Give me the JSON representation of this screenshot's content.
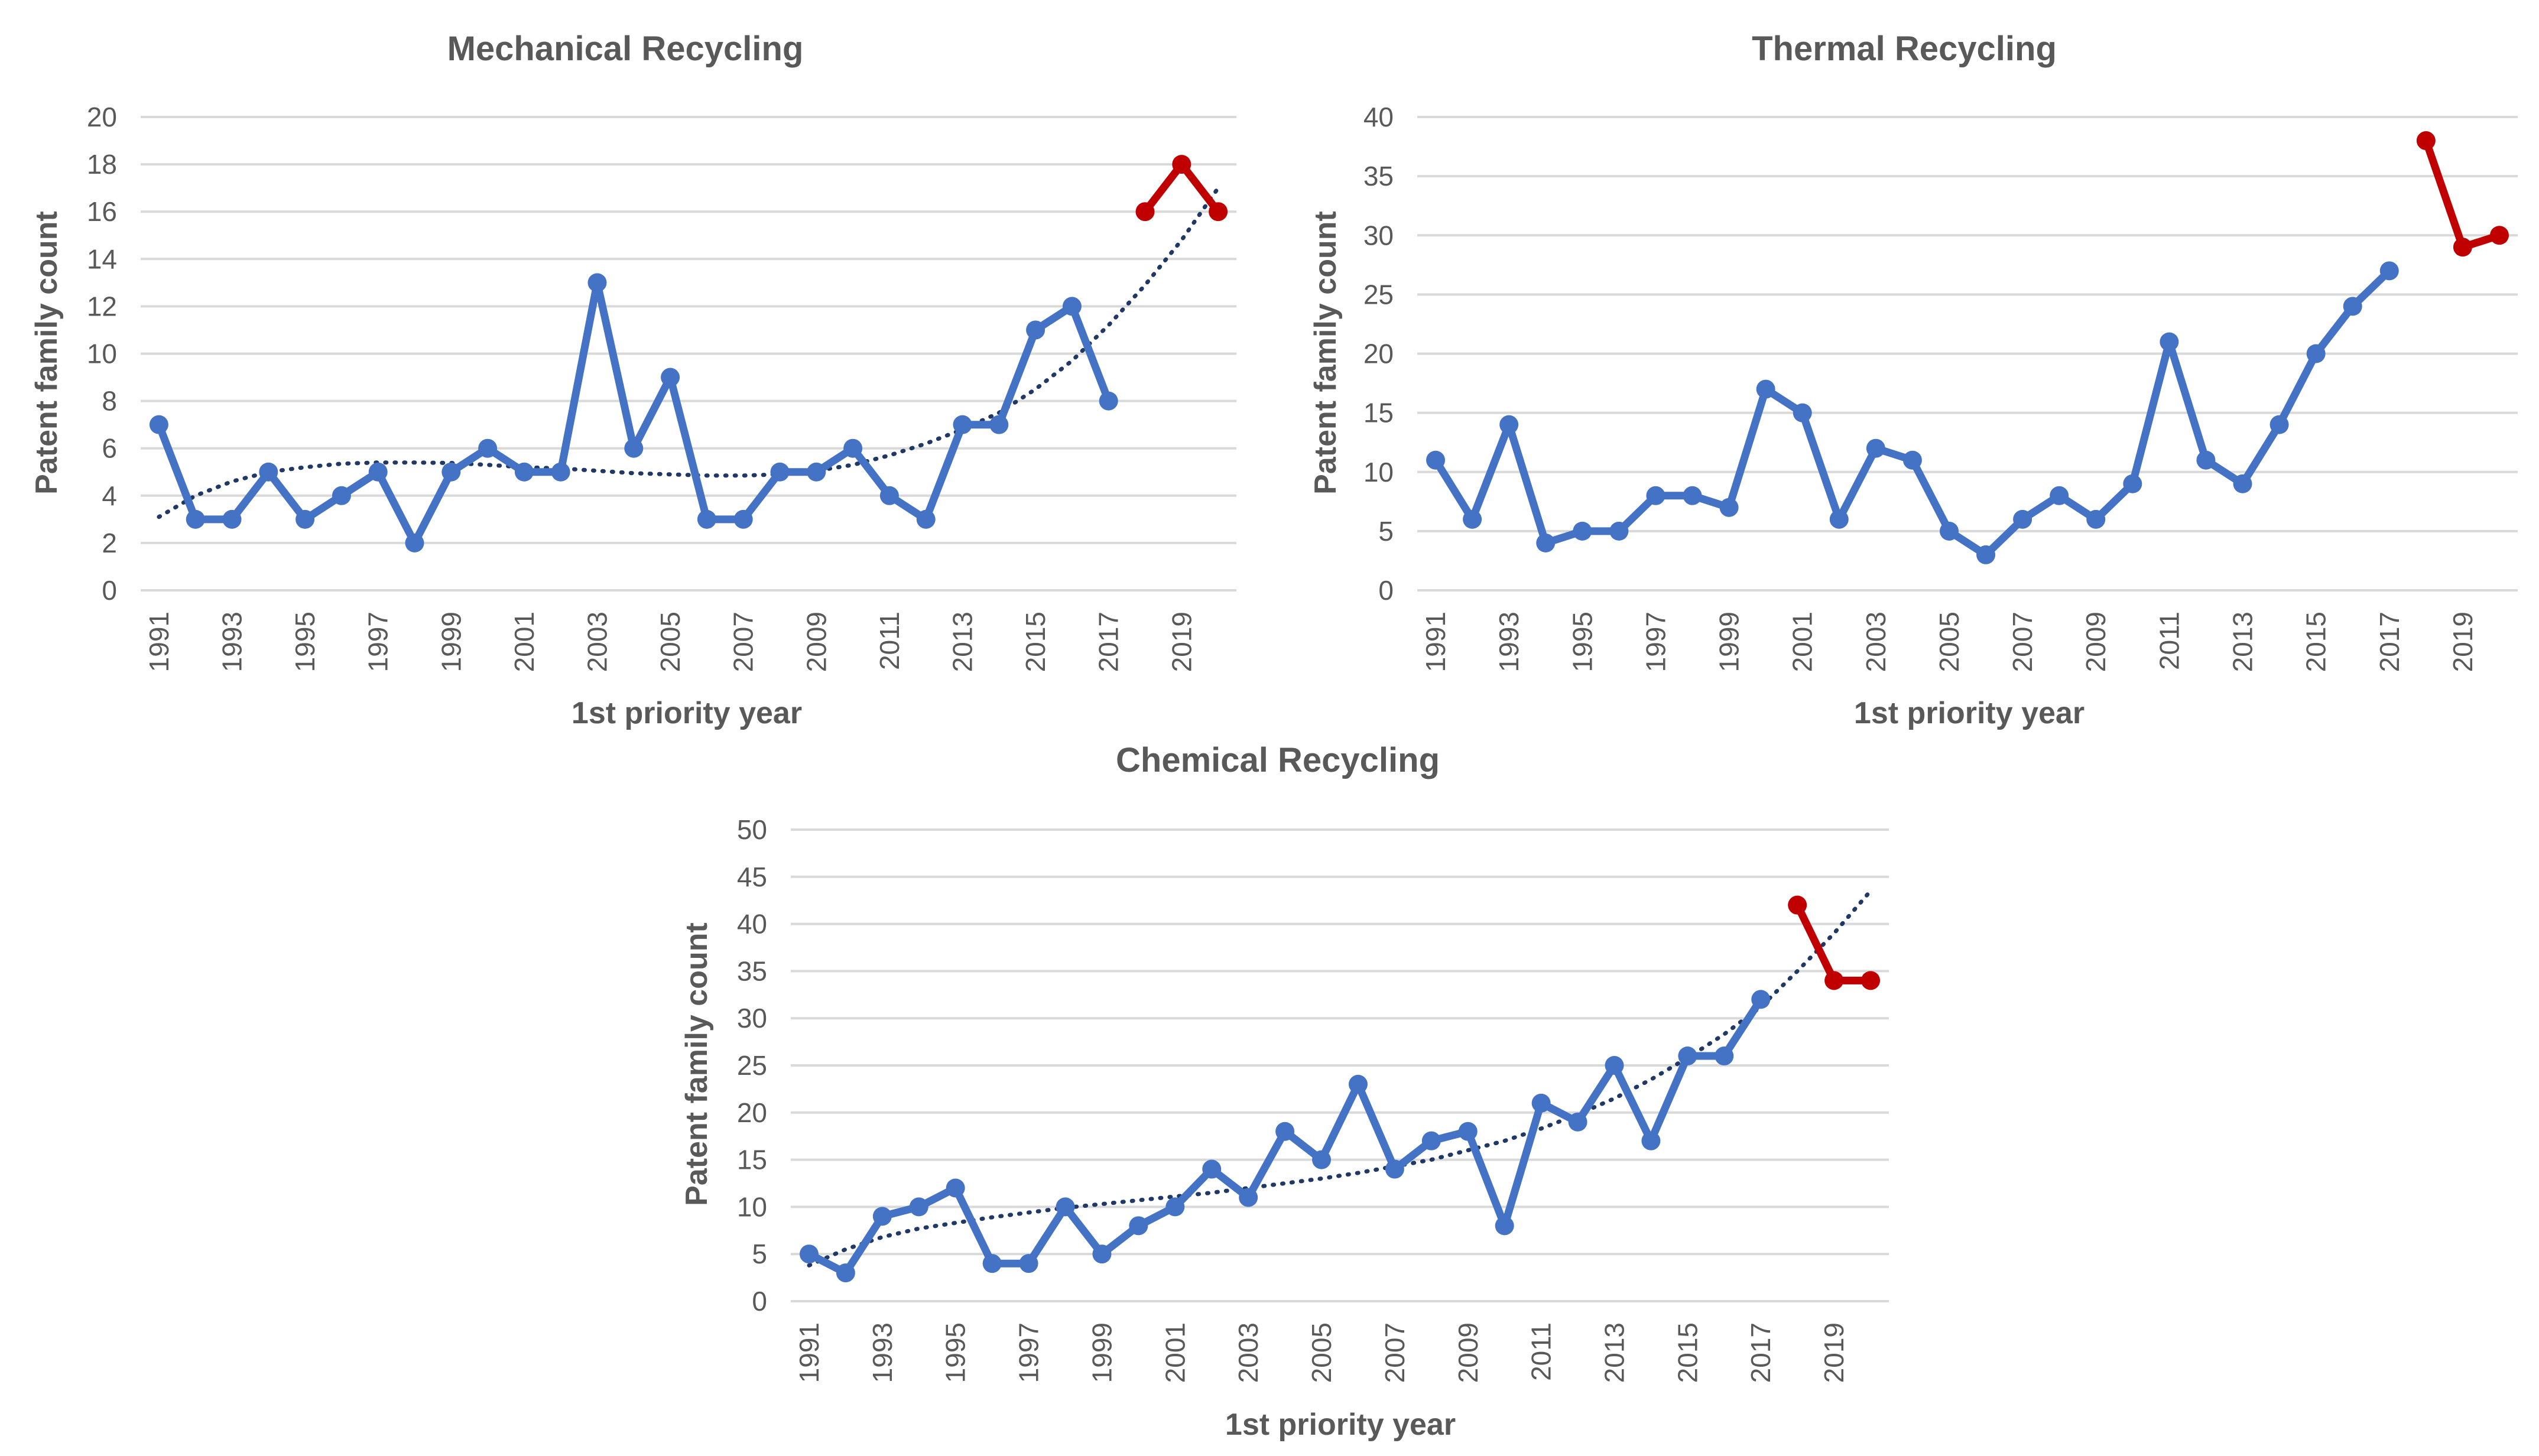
{
  "colors": {
    "series": "#4472c4",
    "recent": "#c00000",
    "trend": "#203864",
    "grid": "#d9d9d9",
    "text": "#595959"
  },
  "chart_data": [
    {
      "type": "line",
      "title": "Mechanical Recycling",
      "xlabel": "1st priority year",
      "ylabel": "Patent family count",
      "x": [
        1991,
        1992,
        1993,
        1994,
        1995,
        1996,
        1997,
        1998,
        1999,
        2000,
        2001,
        2002,
        2003,
        2004,
        2005,
        2006,
        2007,
        2008,
        2009,
        2010,
        2011,
        2012,
        2013,
        2014,
        2015,
        2016,
        2017,
        2018,
        2019,
        2020
      ],
      "values": [
        7,
        3,
        3,
        5,
        3,
        4,
        5,
        2,
        5,
        6,
        5,
        5,
        13,
        6,
        9,
        3,
        3,
        5,
        5,
        6,
        4,
        3,
        7,
        7,
        11,
        12,
        8,
        16,
        18,
        16
      ],
      "highlight_from_index": 27,
      "ylim": [
        0,
        20
      ],
      "yticks": [
        "0",
        "2",
        "4",
        "6",
        "8",
        "10",
        "12",
        "14",
        "16",
        "18",
        "20"
      ],
      "xticks": [
        "1991",
        "1993",
        "1995",
        "1997",
        "1999",
        "2001",
        "2003",
        "2005",
        "2007",
        "2009",
        "2011",
        "2013",
        "2015",
        "2017",
        "2019"
      ],
      "trend": [
        3.1,
        4.0,
        4.6,
        5.0,
        5.2,
        5.35,
        5.4,
        5.4,
        5.38,
        5.3,
        5.2,
        5.15,
        5.05,
        4.95,
        4.9,
        4.85,
        4.85,
        4.9,
        5.05,
        5.3,
        5.7,
        6.2,
        6.8,
        7.5,
        8.5,
        9.7,
        11.2,
        12.9,
        14.8,
        17.0
      ],
      "grid": true
    },
    {
      "type": "line",
      "title": "Thermal Recycling",
      "xlabel": "1st priority year",
      "ylabel": "Patent family count",
      "x": [
        1991,
        1992,
        1993,
        1994,
        1995,
        1996,
        1997,
        1998,
        1999,
        2000,
        2001,
        2002,
        2003,
        2004,
        2005,
        2006,
        2007,
        2008,
        2009,
        2010,
        2011,
        2012,
        2013,
        2014,
        2015,
        2016,
        2017,
        2018,
        2019,
        2020
      ],
      "values": [
        11,
        6,
        14,
        4,
        5,
        5,
        8,
        8,
        7,
        17,
        15,
        6,
        12,
        11,
        5,
        3,
        6,
        8,
        6,
        9,
        21,
        11,
        9,
        14,
        20,
        24,
        27,
        38,
        29,
        30
      ],
      "highlight_from_index": 27,
      "ylim": [
        0,
        40
      ],
      "yticks": [
        "0",
        "5",
        "10",
        "15",
        "20",
        "25",
        "30",
        "35",
        "40"
      ],
      "xticks": [
        "1991",
        "1993",
        "1995",
        "1997",
        "1999",
        "2001",
        "2003",
        "2005",
        "2007",
        "2009",
        "2011",
        "2013",
        "2015",
        "2017",
        "2019"
      ],
      "grid": true
    },
    {
      "type": "line",
      "title": "Chemical Recycling",
      "xlabel": "1st priority year",
      "ylabel": "Patent family count",
      "x": [
        1991,
        1992,
        1993,
        1994,
        1995,
        1996,
        1997,
        1998,
        1999,
        2000,
        2001,
        2002,
        2003,
        2004,
        2005,
        2006,
        2007,
        2008,
        2009,
        2010,
        2011,
        2012,
        2013,
        2014,
        2015,
        2016,
        2017,
        2018,
        2019,
        2020
      ],
      "values": [
        5,
        3,
        9,
        10,
        12,
        4,
        4,
        10,
        5,
        8,
        10,
        14,
        11,
        18,
        15,
        23,
        14,
        17,
        18,
        8,
        21,
        19,
        25,
        17,
        26,
        26,
        32,
        42,
        34,
        34
      ],
      "highlight_from_index": 27,
      "ylim": [
        0,
        50
      ],
      "yticks": [
        "0",
        "5",
        "10",
        "15",
        "20",
        "25",
        "30",
        "35",
        "40",
        "45",
        "50"
      ],
      "xticks": [
        "1991",
        "1993",
        "1995",
        "1997",
        "1999",
        "2001",
        "2003",
        "2005",
        "2007",
        "2009",
        "2011",
        "2013",
        "2015",
        "2017",
        "2019"
      ],
      "trend": [
        3.8,
        5.5,
        6.8,
        7.7,
        8.3,
        8.9,
        9.4,
        9.9,
        10.3,
        10.7,
        11.1,
        11.5,
        12.0,
        12.5,
        13.0,
        13.6,
        14.3,
        15.0,
        16.0,
        17.0,
        18.3,
        19.8,
        21.5,
        23.5,
        25.8,
        28.3,
        31.2,
        35.0,
        39.0,
        43.5
      ],
      "grid": true
    }
  ]
}
